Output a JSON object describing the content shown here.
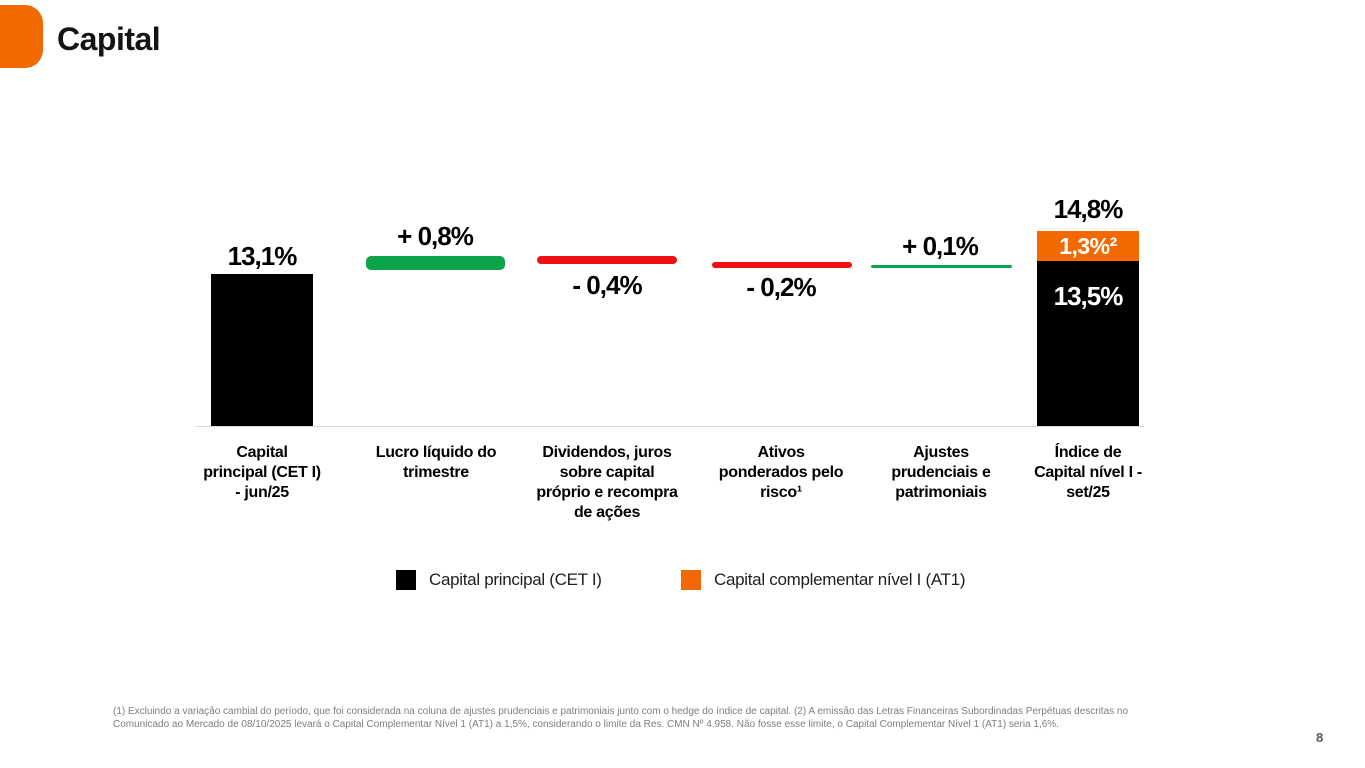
{
  "header": {
    "title": "Capital",
    "logo": "itau-orange-rounded-square"
  },
  "page_number": "8",
  "colors": {
    "brand_orange": "#F26900",
    "increase_green": "#0CA44A",
    "decrease_red": "#EE1111",
    "bar_black": "#000000",
    "baseline_gray": "#D9D9D9",
    "footnote_gray": "#7E7E7E"
  },
  "chart_data": {
    "type": "bar",
    "subtype": "waterfall",
    "title": "Capital",
    "unit": "%",
    "grid": false,
    "baseline_axis": "visible-light-gray",
    "columns": [
      {
        "category": "Capital principal (CET I) - jun/25",
        "label_lines": [
          "Capital",
          "principal (CET I)",
          "- jun/25"
        ],
        "kind": "total",
        "value": 13.1,
        "value_label": "13,1%",
        "color": "#000000"
      },
      {
        "category": "Lucro líquido do trimestre",
        "label_lines": [
          "Lucro líquido do",
          "trimestre"
        ],
        "kind": "increase",
        "value": 0.8,
        "value_label": "+ 0,8%",
        "color": "#0CA44A"
      },
      {
        "category": "Dividendos, juros sobre capital próprio e recompra de ações",
        "label_lines": [
          "Dividendos, juros",
          "sobre capital",
          "próprio e recompra",
          "de ações"
        ],
        "kind": "decrease",
        "value": -0.4,
        "value_label": "- 0,4%",
        "color": "#EE1111"
      },
      {
        "category": "Ativos ponderados pelo risco¹",
        "label_lines": [
          "Ativos",
          "ponderados pelo",
          "risco¹"
        ],
        "kind": "decrease",
        "value": -0.2,
        "value_label": "- 0,2%",
        "color": "#EE1111"
      },
      {
        "category": "Ajustes prudenciais e patrimoniais",
        "label_lines": [
          "Ajustes",
          "prudenciais e",
          "patrimoniais"
        ],
        "kind": "increase",
        "value": 0.1,
        "value_label": "+ 0,1%",
        "color": "#0CA44A"
      },
      {
        "category": "Índice de Capital nível I - set/25",
        "label_lines": [
          "Índice de",
          "Capital nível I -",
          "set/25"
        ],
        "kind": "total-stacked",
        "total": 14.8,
        "total_label": "14,8%",
        "segments": [
          {
            "name": "Capital complementar nível I (AT1)",
            "value": 1.3,
            "value_label": "1,3%²",
            "color": "#F26900"
          },
          {
            "name": "Capital principal (CET I)",
            "value": 13.5,
            "value_label": "13,5%",
            "color": "#000000"
          }
        ]
      }
    ]
  },
  "legend": {
    "items": [
      {
        "label": "Capital principal (CET I)",
        "color": "#000000"
      },
      {
        "label": "Capital complementar nível I (AT1)",
        "color": "#F26900"
      }
    ]
  },
  "footnote": {
    "lines": [
      "(1) Excluindo a variação cambial do período, que foi considerada na coluna de ajustes prudenciais e patrimoniais junto com o hedge do índice de capital. (2) A emissão das Letras Financeiras Subordinadas Perpétuas descritas no",
      "Comunicado ao Mercado de 08/10/2025 levará o Capital Complementar Nível 1 (AT1) a 1,5%, considerando o limite da Res. CMN Nº 4.958. Não fosse esse limite, o Capital Complementar Nível 1 (AT1) seria 1,6%."
    ]
  }
}
